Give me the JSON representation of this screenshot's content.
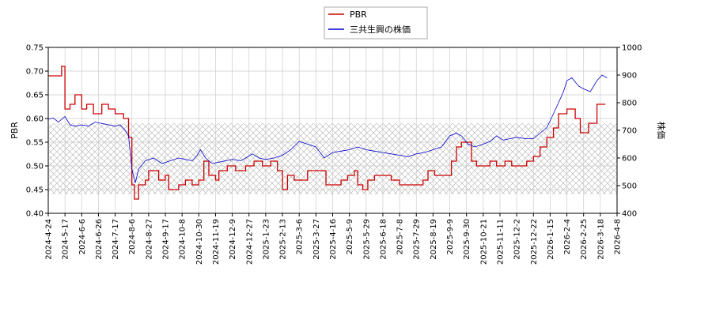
{
  "chart_data": {
    "type": "line",
    "ylabel": "PBR",
    "y2label": "株価",
    "ylim": [
      0.4,
      0.75
    ],
    "y2lim": [
      400,
      1000
    ],
    "yticks": [
      "0.40",
      "0.45",
      "0.50",
      "0.55",
      "0.60",
      "0.65",
      "0.70",
      "0.75"
    ],
    "y2ticks": [
      "400",
      "500",
      "600",
      "700",
      "800",
      "900",
      "1000"
    ],
    "xticks": [
      "2024-4-24",
      "2024-5-17",
      "2024-6-6",
      "2024-6-26",
      "2024-7-17",
      "2024-8-6",
      "2024-8-27",
      "2024-9-17",
      "2024-10-8",
      "2024-10-30",
      "2024-11-19",
      "2024-12-9",
      "2024-12-27",
      "2025-1-23",
      "2025-2-13",
      "2025-3-6",
      "2025-3-27",
      "2025-4-16",
      "2025-5-9",
      "2025-5-29",
      "2025-6-18",
      "2025-7-8",
      "2025-7-29",
      "2025-8-19",
      "2025-9-9",
      "2025-9-30",
      "2025-10-21",
      "2025-11-11",
      "2025-12-2",
      "2025-12-22",
      "2026-1-15",
      "2026-2-4",
      "2026-2-25",
      "2026-3-18",
      "2026-4-8"
    ],
    "legend_position": "top-center",
    "hatch_band": [
      0.44,
      0.59
    ],
    "series": [
      {
        "name": "PBR",
        "axis": "left",
        "color": "#cc0000",
        "points": [
          [
            0,
            0.69
          ],
          [
            0.5,
            0.69
          ],
          [
            0.8,
            0.71
          ],
          [
            1.0,
            0.62
          ],
          [
            1.3,
            0.63
          ],
          [
            1.6,
            0.65
          ],
          [
            2.0,
            0.62
          ],
          [
            2.3,
            0.63
          ],
          [
            2.7,
            0.61
          ],
          [
            3.2,
            0.63
          ],
          [
            3.6,
            0.62
          ],
          [
            4.0,
            0.61
          ],
          [
            4.5,
            0.6
          ],
          [
            4.8,
            0.56
          ],
          [
            5.0,
            0.46
          ],
          [
            5.15,
            0.43
          ],
          [
            5.4,
            0.46
          ],
          [
            5.8,
            0.47
          ],
          [
            6.0,
            0.49
          ],
          [
            6.6,
            0.47
          ],
          [
            7.0,
            0.48
          ],
          [
            7.2,
            0.45
          ],
          [
            7.8,
            0.46
          ],
          [
            8.2,
            0.47
          ],
          [
            8.6,
            0.46
          ],
          [
            9.0,
            0.47
          ],
          [
            9.3,
            0.51
          ],
          [
            9.6,
            0.48
          ],
          [
            10.0,
            0.47
          ],
          [
            10.2,
            0.49
          ],
          [
            10.7,
            0.5
          ],
          [
            11.2,
            0.49
          ],
          [
            11.8,
            0.5
          ],
          [
            12.3,
            0.51
          ],
          [
            12.8,
            0.5
          ],
          [
            13.3,
            0.51
          ],
          [
            13.7,
            0.49
          ],
          [
            14.0,
            0.45
          ],
          [
            14.3,
            0.48
          ],
          [
            14.7,
            0.47
          ],
          [
            15.2,
            0.47
          ],
          [
            15.5,
            0.49
          ],
          [
            16.2,
            0.49
          ],
          [
            16.6,
            0.46
          ],
          [
            17.0,
            0.46
          ],
          [
            17.5,
            0.47
          ],
          [
            17.9,
            0.48
          ],
          [
            18.3,
            0.49
          ],
          [
            18.5,
            0.46
          ],
          [
            18.8,
            0.45
          ],
          [
            19.1,
            0.47
          ],
          [
            19.5,
            0.48
          ],
          [
            20.0,
            0.48
          ],
          [
            20.5,
            0.47
          ],
          [
            21.0,
            0.46
          ],
          [
            21.7,
            0.46
          ],
          [
            22.4,
            0.47
          ],
          [
            22.7,
            0.49
          ],
          [
            23.1,
            0.48
          ],
          [
            23.6,
            0.48
          ],
          [
            24.1,
            0.51
          ],
          [
            24.4,
            0.54
          ],
          [
            24.7,
            0.55
          ],
          [
            25.3,
            0.51
          ],
          [
            25.6,
            0.5
          ],
          [
            26.0,
            0.5
          ],
          [
            26.4,
            0.51
          ],
          [
            26.8,
            0.5
          ],
          [
            27.3,
            0.51
          ],
          [
            27.7,
            0.5
          ],
          [
            28.0,
            0.5
          ],
          [
            28.6,
            0.51
          ],
          [
            29.0,
            0.52
          ],
          [
            29.4,
            0.54
          ],
          [
            29.8,
            0.56
          ],
          [
            30.2,
            0.58
          ],
          [
            30.5,
            0.61
          ],
          [
            31.0,
            0.62
          ],
          [
            31.5,
            0.6
          ],
          [
            31.8,
            0.57
          ],
          [
            32.3,
            0.59
          ],
          [
            32.8,
            0.63
          ],
          [
            33.3,
            0.63
          ]
        ]
      },
      {
        "name": "三共生興の株価",
        "axis": "right",
        "color": "#0000cc",
        "points": [
          [
            0,
            740
          ],
          [
            0.3,
            745
          ],
          [
            0.6,
            730
          ],
          [
            1.0,
            750
          ],
          [
            1.3,
            720
          ],
          [
            1.6,
            715
          ],
          [
            2.0,
            720
          ],
          [
            2.4,
            715
          ],
          [
            2.8,
            730
          ],
          [
            3.2,
            725
          ],
          [
            3.6,
            720
          ],
          [
            4.0,
            715
          ],
          [
            4.3,
            720
          ],
          [
            4.6,
            700
          ],
          [
            4.8,
            680
          ],
          [
            5.0,
            560
          ],
          [
            5.2,
            510
          ],
          [
            5.4,
            560
          ],
          [
            5.8,
            590
          ],
          [
            6.3,
            600
          ],
          [
            6.8,
            580
          ],
          [
            7.3,
            590
          ],
          [
            7.8,
            600
          ],
          [
            8.2,
            595
          ],
          [
            8.6,
            590
          ],
          [
            8.9,
            610
          ],
          [
            9.1,
            630
          ],
          [
            9.4,
            600
          ],
          [
            9.8,
            580
          ],
          [
            10.2,
            585
          ],
          [
            10.6,
            590
          ],
          [
            11.0,
            595
          ],
          [
            11.5,
            590
          ],
          [
            11.8,
            600
          ],
          [
            12.2,
            615
          ],
          [
            12.6,
            600
          ],
          [
            13.0,
            595
          ],
          [
            13.5,
            600
          ],
          [
            14.0,
            610
          ],
          [
            14.5,
            630
          ],
          [
            15.0,
            660
          ],
          [
            15.5,
            650
          ],
          [
            16.0,
            640
          ],
          [
            16.5,
            600
          ],
          [
            17.0,
            620
          ],
          [
            17.5,
            625
          ],
          [
            18.0,
            630
          ],
          [
            18.5,
            640
          ],
          [
            19.0,
            630
          ],
          [
            19.5,
            625
          ],
          [
            20.0,
            620
          ],
          [
            20.5,
            615
          ],
          [
            21.0,
            610
          ],
          [
            21.5,
            605
          ],
          [
            22.0,
            615
          ],
          [
            22.5,
            620
          ],
          [
            23.0,
            630
          ],
          [
            23.5,
            640
          ],
          [
            24.0,
            680
          ],
          [
            24.4,
            690
          ],
          [
            24.7,
            680
          ],
          [
            25.1,
            650
          ],
          [
            25.5,
            640
          ],
          [
            26.0,
            650
          ],
          [
            26.4,
            660
          ],
          [
            26.8,
            680
          ],
          [
            27.2,
            665
          ],
          [
            27.6,
            670
          ],
          [
            28.0,
            675
          ],
          [
            28.5,
            670
          ],
          [
            29.0,
            670
          ],
          [
            29.4,
            690
          ],
          [
            29.8,
            710
          ],
          [
            30.2,
            760
          ],
          [
            30.5,
            800
          ],
          [
            30.8,
            840
          ],
          [
            31.0,
            880
          ],
          [
            31.3,
            890
          ],
          [
            31.7,
            860
          ],
          [
            32.0,
            850
          ],
          [
            32.4,
            840
          ],
          [
            32.8,
            880
          ],
          [
            33.1,
            900
          ],
          [
            33.4,
            890
          ]
        ]
      }
    ]
  }
}
